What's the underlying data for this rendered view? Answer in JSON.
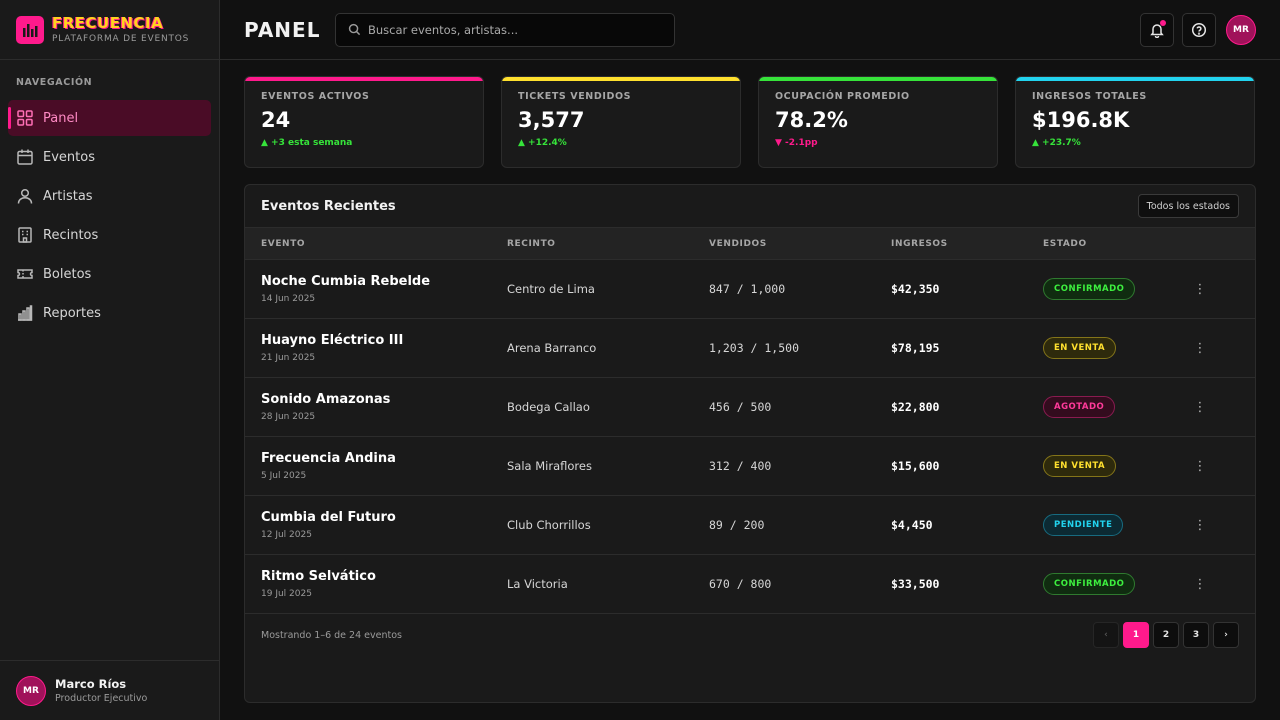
{
  "brand": {
    "name": "FRECUENCIA",
    "subtitle": "PLATAFORMA DE EVENTOS"
  },
  "colors": {
    "accent": "#ff1a8c",
    "yellow": "#ffd21f",
    "green": "#36e33a",
    "cyan": "#22d3ee"
  },
  "sidebar": {
    "heading": "NAVEGACIÓN",
    "items": [
      {
        "label": "Panel",
        "icon": "grid-icon",
        "active": true
      },
      {
        "label": "Eventos",
        "icon": "calendar-icon"
      },
      {
        "label": "Artistas",
        "icon": "person-icon"
      },
      {
        "label": "Recintos",
        "icon": "building-icon"
      },
      {
        "label": "Boletos",
        "icon": "ticket-icon"
      },
      {
        "label": "Reportes",
        "icon": "bar-chart-icon"
      }
    ],
    "user": {
      "initials": "MR",
      "name": "Marco Ríos",
      "role": "Productor Ejecutivo"
    }
  },
  "topbar": {
    "title": "PANEL",
    "search_placeholder": "Buscar eventos, artistas...",
    "avatar_initials": "MR"
  },
  "stats": [
    {
      "label": "EVENTOS ACTIVOS",
      "value": "24",
      "delta": "▲ +3 esta semana",
      "trend": "up",
      "accent": "#ff1a8c"
    },
    {
      "label": "TICKETS VENDIDOS",
      "value": "3,577",
      "delta": "▲ +12.4%",
      "trend": "up",
      "accent": "#ffe02e"
    },
    {
      "label": "OCUPACIÓN PROMEDIO",
      "value": "78.2%",
      "delta": "▼ -2.1pp",
      "trend": "down",
      "accent": "#36e33a"
    },
    {
      "label": "INGRESOS TOTALES",
      "value": "$196.8K",
      "delta": "▲ +23.7%",
      "trend": "up",
      "accent": "#22d3ee"
    }
  ],
  "events_panel": {
    "title": "Eventos Recientes",
    "filter_label": "Todos los estados",
    "columns": [
      "EVENTO",
      "RECINTO",
      "VENDIDOS",
      "INGRESOS",
      "ESTADO"
    ],
    "rows": [
      {
        "name": "Noche Cumbia Rebelde",
        "date": "14 Jun 2025",
        "venue": "Centro de Lima",
        "sold": "847 / 1,000",
        "revenue": "$42,350",
        "status": "CONFIRMADO",
        "status_color": "green"
      },
      {
        "name": "Huayno Eléctrico III",
        "date": "21 Jun 2025",
        "venue": "Arena Barranco",
        "sold": "1,203 / 1,500",
        "revenue": "$78,195",
        "status": "EN VENTA",
        "status_color": "yellow"
      },
      {
        "name": "Sonido Amazonas",
        "date": "28 Jun 2025",
        "venue": "Bodega Callao",
        "sold": "456 / 500",
        "revenue": "$22,800",
        "status": "AGOTADO",
        "status_color": "pink"
      },
      {
        "name": "Frecuencia Andina",
        "date": "5 Jul 2025",
        "venue": "Sala Miraflores",
        "sold": "312 / 400",
        "revenue": "$15,600",
        "status": "EN VENTA",
        "status_color": "yellow"
      },
      {
        "name": "Cumbia del Futuro",
        "date": "12 Jul 2025",
        "venue": "Club Chorrillos",
        "sold": "89 / 200",
        "revenue": "$4,450",
        "status": "PENDIENTE",
        "status_color": "cyan"
      },
      {
        "name": "Ritmo Selvático",
        "date": "19 Jul 2025",
        "venue": "La Victoria",
        "sold": "670 / 800",
        "revenue": "$33,500",
        "status": "CONFIRMADO",
        "status_color": "green"
      }
    ],
    "footer_text": "Mostrando 1–6 de 24 eventos",
    "pagination": {
      "prev": "‹",
      "pages": [
        "1",
        "2",
        "3"
      ],
      "current": "1",
      "next": "›"
    }
  }
}
